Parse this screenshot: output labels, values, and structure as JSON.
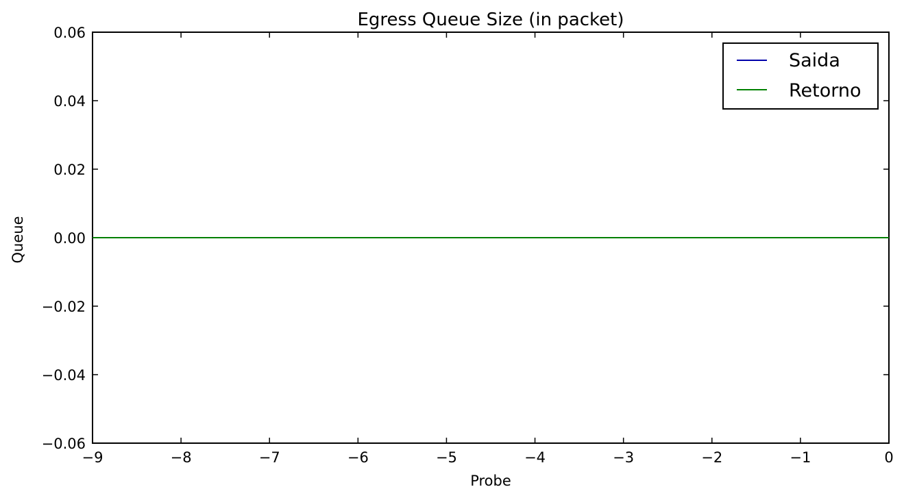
{
  "chart_data": {
    "type": "line",
    "title": "Egress Queue Size (in packet)",
    "xlabel": "Probe",
    "ylabel": "Queue",
    "xlim": [
      -9,
      0
    ],
    "ylim": [
      -0.06,
      0.06
    ],
    "x_ticks": [
      -9,
      -8,
      -7,
      -6,
      -5,
      -4,
      -3,
      -2,
      -1,
      0
    ],
    "x_tick_labels": [
      "−9",
      "−8",
      "−7",
      "−6",
      "−5",
      "−4",
      "−3",
      "−2",
      "−1",
      "0"
    ],
    "y_ticks": [
      0.06,
      0.04,
      0.02,
      0.0,
      -0.02,
      -0.04,
      -0.06
    ],
    "y_tick_labels": [
      "0.06",
      "0.04",
      "0.02",
      "0.00",
      "−0.02",
      "−0.04",
      "−0.06"
    ],
    "grid": false,
    "legend_position": "top-right",
    "series": [
      {
        "name": "Saida",
        "color": "#0000aa",
        "x": [
          -9,
          0
        ],
        "y": [
          0,
          0
        ]
      },
      {
        "name": "Retorno",
        "color": "#008000",
        "x": [
          -9,
          0
        ],
        "y": [
          0,
          0
        ]
      }
    ]
  }
}
